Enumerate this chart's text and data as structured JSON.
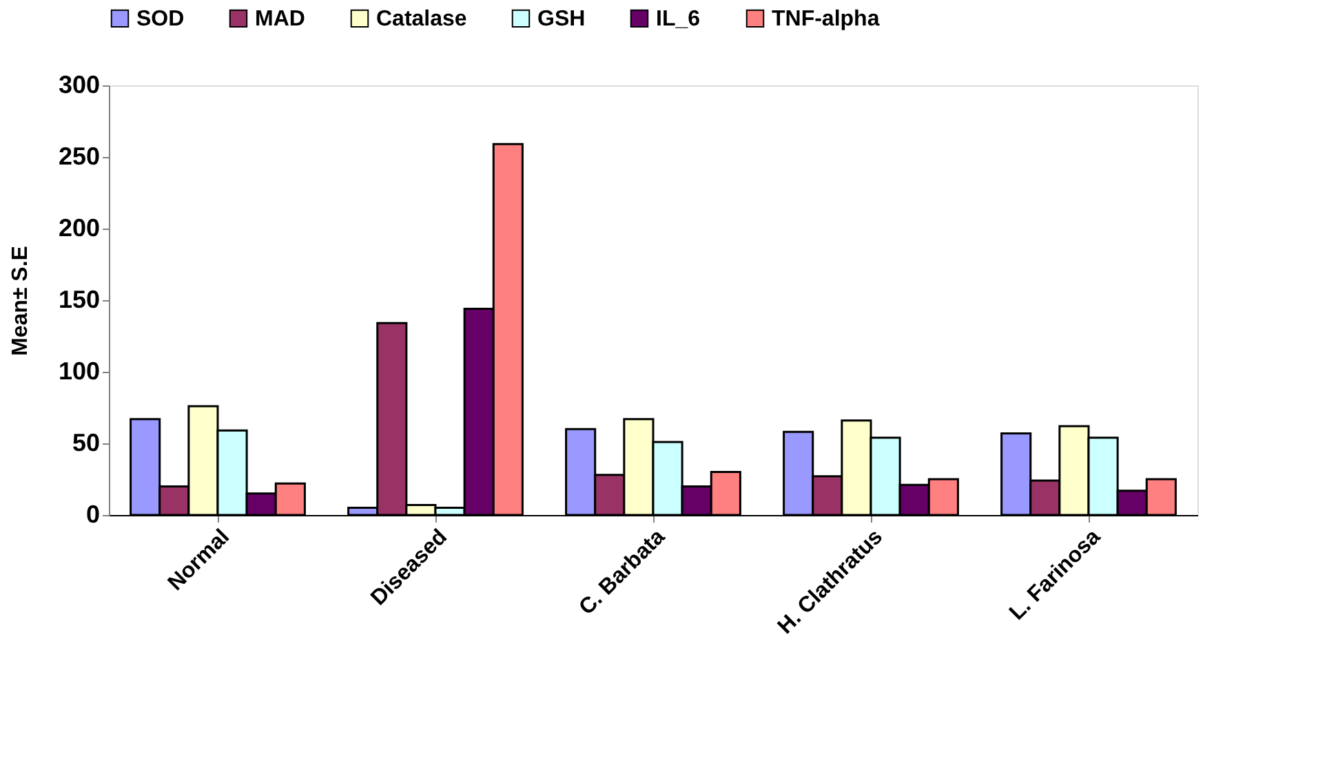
{
  "chart_data": {
    "type": "bar",
    "ylabel": "Mean± S.E",
    "categories": [
      "Normal",
      "Diseased",
      "C. Barbata",
      "H. Clathratus",
      "L. Farinosa"
    ],
    "series": [
      {
        "name": "SOD",
        "color": "#9999ff",
        "values": [
          67,
          5,
          60,
          58,
          57
        ]
      },
      {
        "name": "MAD",
        "color": "#993366",
        "values": [
          20,
          134,
          28,
          27,
          24
        ]
      },
      {
        "name": "Catalase",
        "color": "#ffffcc",
        "values": [
          76,
          7,
          67,
          66,
          62
        ]
      },
      {
        "name": "GSH",
        "color": "#ccffff",
        "values": [
          59,
          5,
          51,
          54,
          54
        ]
      },
      {
        "name": "IL_6",
        "color": "#660066",
        "values": [
          15,
          144,
          20,
          21,
          17
        ]
      },
      {
        "name": "TNF-alpha",
        "color": "#ff8080",
        "values": [
          22,
          259,
          30,
          25,
          25
        ]
      }
    ],
    "ylim": [
      0,
      300
    ],
    "yticks": [
      0,
      50,
      100,
      150,
      200,
      250,
      300
    ],
    "grid": false,
    "legend": "top"
  }
}
